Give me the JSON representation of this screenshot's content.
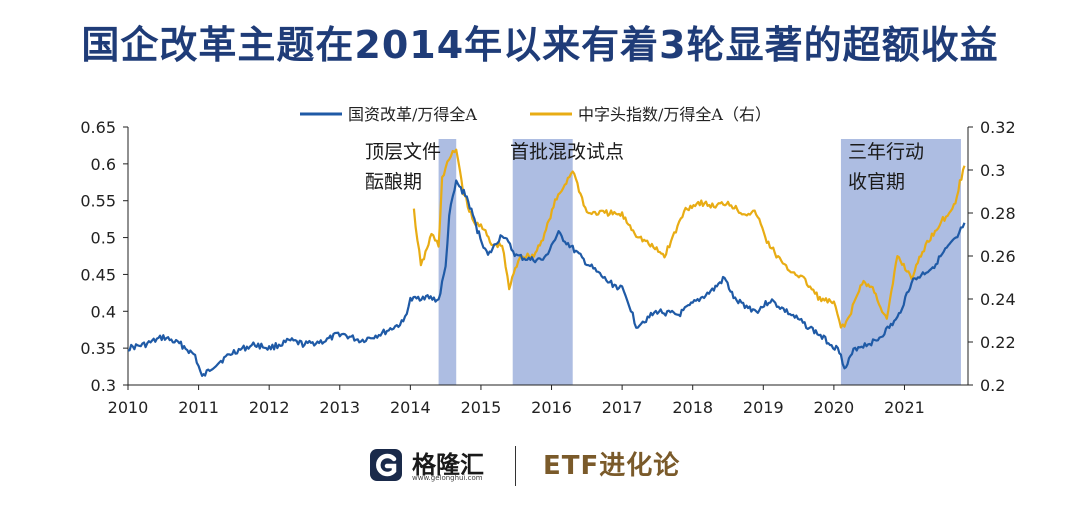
{
  "title": "国企改革主题在2014年以来有着3轮显著的超额收益",
  "colors": {
    "title": "#1f3c78",
    "series_blue": "#1f5aa6",
    "series_gold": "#e8ac14",
    "shade": "#9fb1dd",
    "axis": "#222222",
    "footer_right": "#7a5a2a"
  },
  "footer": {
    "logo_icon": "gelonghui-logo-icon",
    "brand_cn": "格隆汇",
    "brand_url": "www.gelonghui.com",
    "right_text": "ETF进化论"
  },
  "chart_data": {
    "type": "line",
    "title": "国企改革主题在2014年以来有着3轮显著的超额收益",
    "legend_position": "top-center",
    "grid": false,
    "x_axis": {
      "range": [
        2010.0,
        2021.9
      ],
      "ticks": [
        "2010",
        "2011",
        "2012",
        "2013",
        "2014",
        "2015",
        "2016",
        "2017",
        "2018",
        "2019",
        "2020",
        "2021"
      ]
    },
    "y_left": {
      "range": [
        0.3,
        0.65
      ],
      "ticks": [
        "0.3",
        "0.35",
        "0.4",
        "0.45",
        "0.5",
        "0.55",
        "0.6",
        "0.65"
      ]
    },
    "y_right": {
      "range": [
        0.2,
        0.32
      ],
      "ticks": [
        "0.2",
        "0.22",
        "0.24",
        "0.26",
        "0.28",
        "0.3",
        "0.32"
      ]
    },
    "shaded_periods": [
      {
        "label_lines": [
          "顶层文件",
          "酝酿期"
        ],
        "start": 2014.4,
        "end": 2014.65
      },
      {
        "label_lines": [
          "首批混改试点"
        ],
        "start": 2015.45,
        "end": 2016.3
      },
      {
        "label_lines": [
          "三年行动",
          "收官期"
        ],
        "start": 2020.1,
        "end": 2021.8
      }
    ],
    "series": [
      {
        "name": "国资改革/万得全A",
        "axis": "left",
        "color": "#1f5aa6",
        "x": [
          2010.0,
          2010.25,
          2010.5,
          2010.75,
          2010.95,
          2011.05,
          2011.2,
          2011.5,
          2011.8,
          2012.0,
          2012.3,
          2012.5,
          2012.8,
          2013.0,
          2013.3,
          2013.6,
          2013.9,
          2014.0,
          2014.2,
          2014.4,
          2014.5,
          2014.55,
          2014.65,
          2014.8,
          2014.95,
          2015.1,
          2015.3,
          2015.5,
          2015.7,
          2015.9,
          2016.0,
          2016.1,
          2016.3,
          2016.5,
          2016.8,
          2017.0,
          2017.1,
          2017.2,
          2017.5,
          2017.8,
          2018.0,
          2018.3,
          2018.45,
          2018.6,
          2018.9,
          2019.1,
          2019.4,
          2019.7,
          2019.9,
          2020.1,
          2020.15,
          2020.3,
          2020.6,
          2020.9,
          2021.1,
          2021.4,
          2021.6,
          2021.75,
          2021.85
        ],
        "y": [
          0.35,
          0.355,
          0.365,
          0.355,
          0.34,
          0.31,
          0.325,
          0.345,
          0.355,
          0.35,
          0.36,
          0.355,
          0.36,
          0.37,
          0.36,
          0.37,
          0.385,
          0.415,
          0.42,
          0.415,
          0.46,
          0.53,
          0.575,
          0.555,
          0.51,
          0.475,
          0.505,
          0.475,
          0.47,
          0.47,
          0.49,
          0.505,
          0.485,
          0.465,
          0.44,
          0.43,
          0.41,
          0.38,
          0.4,
          0.395,
          0.41,
          0.43,
          0.445,
          0.415,
          0.4,
          0.415,
          0.395,
          0.375,
          0.36,
          0.345,
          0.32,
          0.35,
          0.36,
          0.39,
          0.44,
          0.46,
          0.485,
          0.5,
          0.52
        ]
      },
      {
        "name": "中字头指数/万得全A（右）",
        "axis": "right",
        "color": "#e8ac14",
        "x": [
          2014.05,
          2014.15,
          2014.3,
          2014.4,
          2014.45,
          2014.55,
          2014.65,
          2014.75,
          2014.9,
          2015.0,
          2015.15,
          2015.3,
          2015.4,
          2015.55,
          2015.75,
          2015.9,
          2016.05,
          2016.3,
          2016.5,
          2016.8,
          2017.0,
          2017.2,
          2017.4,
          2017.6,
          2017.9,
          2018.1,
          2018.3,
          2018.5,
          2018.7,
          2018.9,
          2019.05,
          2019.3,
          2019.55,
          2019.8,
          2020.0,
          2020.1,
          2020.2,
          2020.4,
          2020.55,
          2020.75,
          2020.9,
          2021.1,
          2021.3,
          2021.5,
          2021.7,
          2021.85
        ],
        "y": [
          0.281,
          0.255,
          0.27,
          0.265,
          0.296,
          0.305,
          0.31,
          0.29,
          0.275,
          0.275,
          0.265,
          0.265,
          0.245,
          0.26,
          0.26,
          0.27,
          0.285,
          0.3,
          0.28,
          0.28,
          0.279,
          0.27,
          0.265,
          0.26,
          0.282,
          0.285,
          0.283,
          0.285,
          0.28,
          0.28,
          0.267,
          0.255,
          0.25,
          0.24,
          0.238,
          0.227,
          0.23,
          0.248,
          0.245,
          0.23,
          0.26,
          0.25,
          0.265,
          0.275,
          0.283,
          0.302
        ]
      }
    ]
  }
}
